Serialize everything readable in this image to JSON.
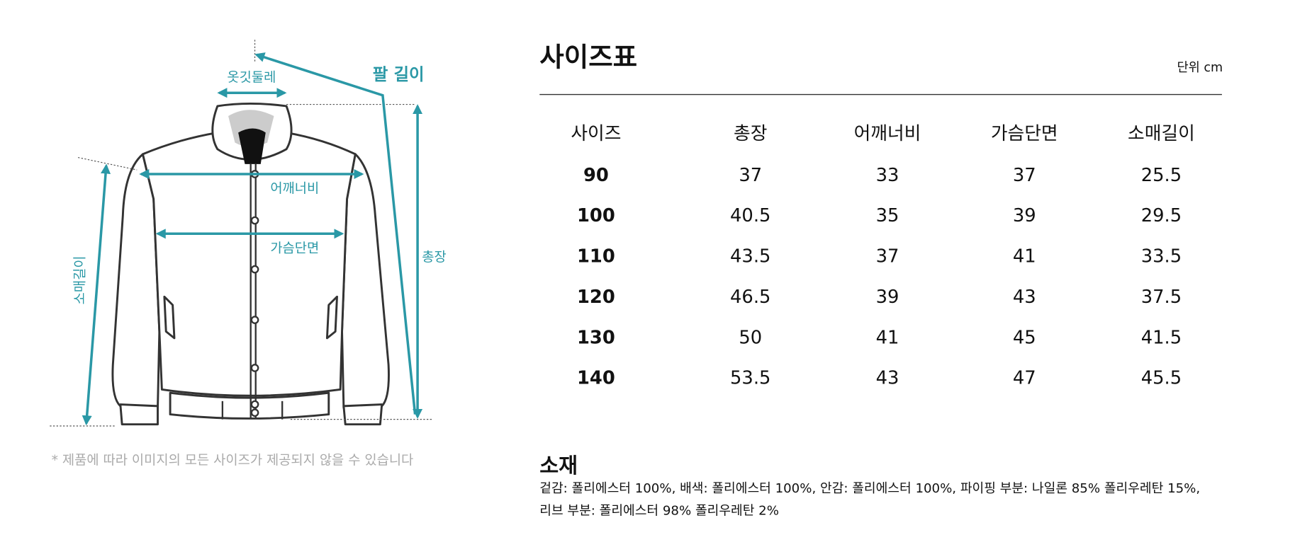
{
  "diagram": {
    "labels": {
      "collar": "옷깃둘레",
      "sleeve_length_top": "팔 길이",
      "shoulder": "어깨너비",
      "chest": "가슴단면",
      "sleeve": "소매길이",
      "total_length": "총장"
    },
    "note": "* 제품에 따라 이미지의 모든 사이즈가 제공되지 않을 수 있습니다"
  },
  "size_table": {
    "title": "사이즈표",
    "unit": "단위 cm",
    "header": [
      "사이즈",
      "총장",
      "어깨너비",
      "가슴단면",
      "소매길이"
    ],
    "rows": [
      [
        90,
        37,
        33,
        37,
        25.5
      ],
      [
        100,
        40.5,
        35,
        39,
        29.5
      ],
      [
        110,
        43.5,
        37,
        41,
        33.5
      ],
      [
        120,
        46.5,
        39,
        43,
        37.5
      ],
      [
        130,
        50,
        41,
        45,
        41.5
      ],
      [
        140,
        53.5,
        43,
        47,
        45.5
      ]
    ]
  },
  "material": {
    "title": "소재",
    "lines": [
      "겉감: 폴리에스터 100%, 배색: 폴리에스터 100%, 안감: 폴리에스터 100%, 파이핑 부분: 나일론 85% 폴리우레탄 15%,",
      "리브 부분: 폴리에스터 98% 폴리우레탄 2%"
    ]
  }
}
